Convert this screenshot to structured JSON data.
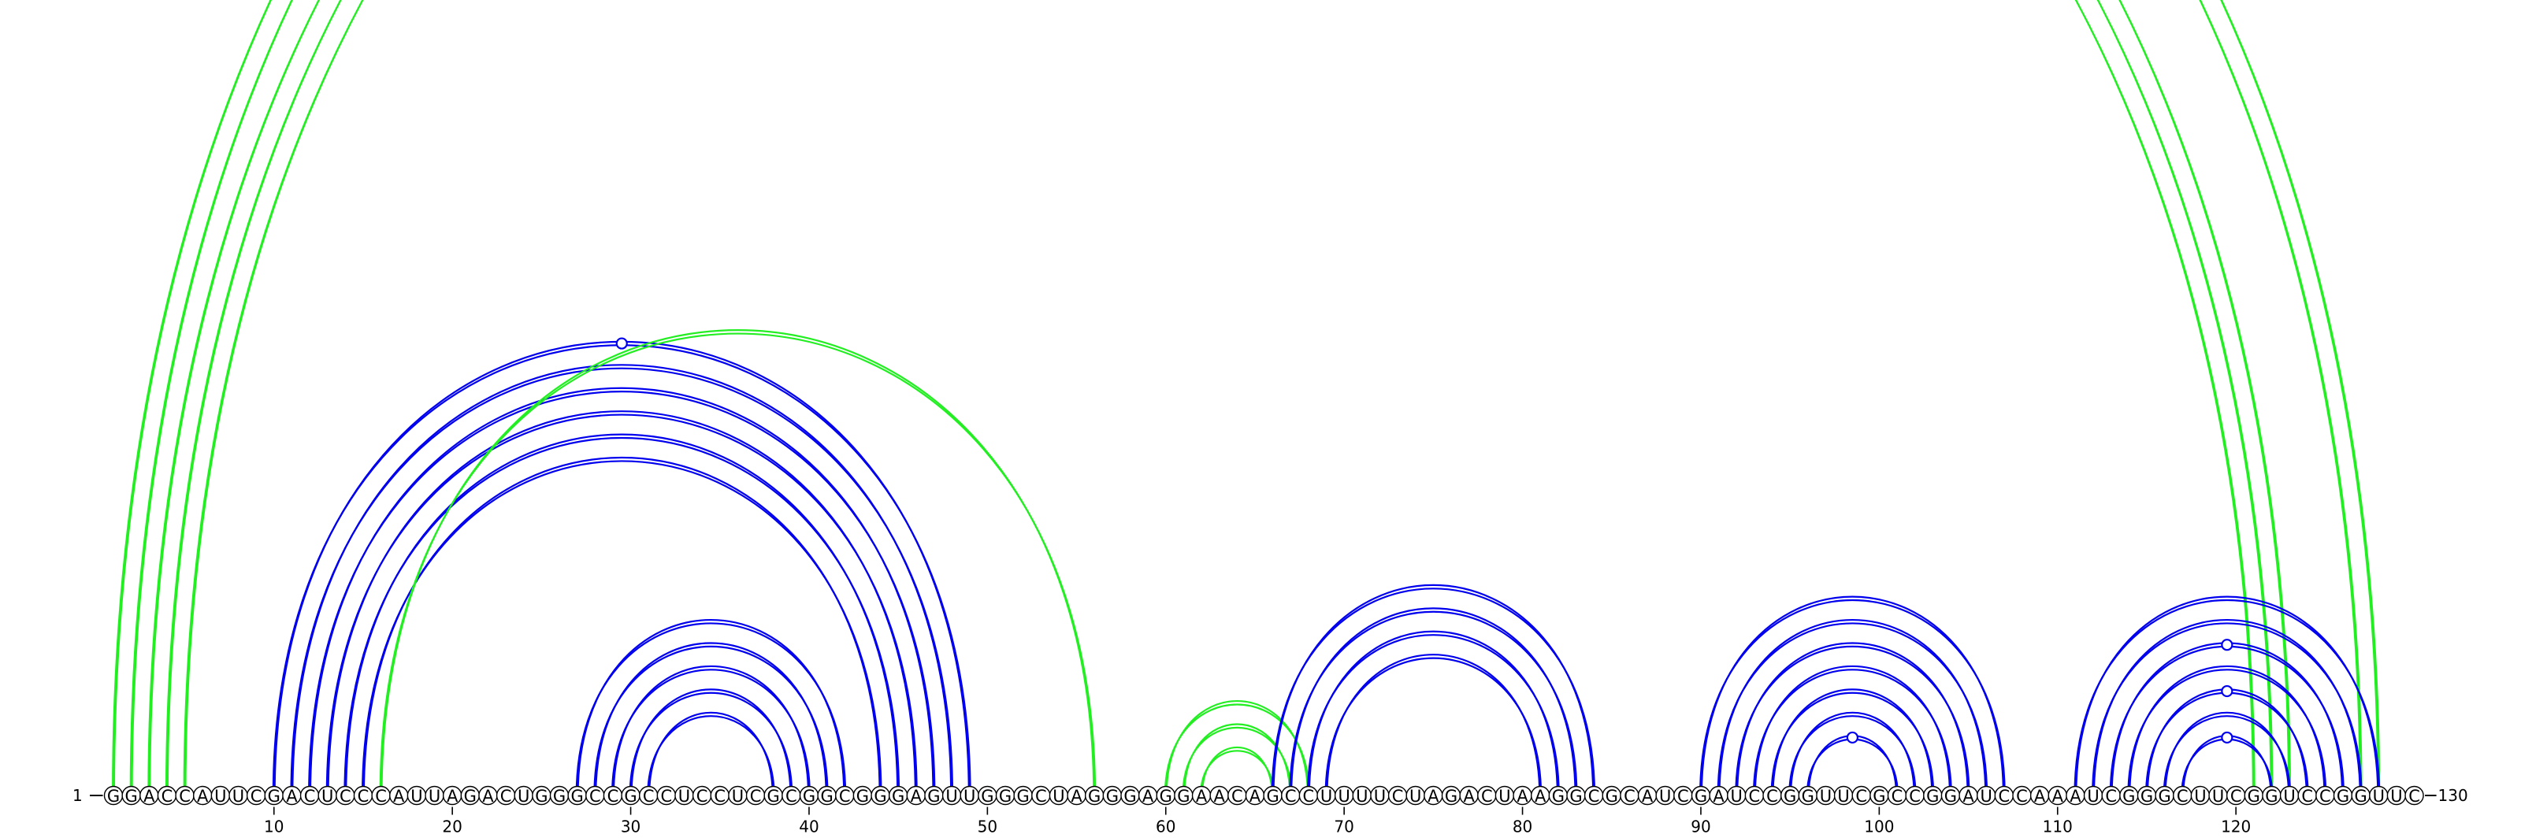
{
  "sequence": "GGACCAUUCGACUCCCAUUAGACUGGGCCGCCUCCUCGCGGCGGGAGUUGGGCUAGGGAGGAACAGCCUUUUCUAGACUAAGGCGCAUCGAUCCGGUUCGCCGGAUCCAAAUCGGGCUUCGGUCCGGUUC",
  "start_label": "1",
  "end_label": "130",
  "ticks": [
    10,
    20,
    30,
    40,
    50,
    60,
    70,
    80,
    90,
    100,
    110,
    120
  ],
  "colors": {
    "blue": "#0000ee",
    "green": "#22ee22"
  },
  "pairs": [
    {
      "i": 1,
      "j": 128,
      "color": "green"
    },
    {
      "i": 2,
      "j": 127,
      "color": "green"
    },
    {
      "i": 3,
      "j": 123,
      "color": "green"
    },
    {
      "i": 4,
      "j": 122,
      "color": "green"
    },
    {
      "i": 5,
      "j": 121,
      "color": "green"
    },
    {
      "i": 10,
      "j": 49,
      "color": "blue"
    },
    {
      "i": 11,
      "j": 48,
      "color": "blue"
    },
    {
      "i": 12,
      "j": 47,
      "color": "blue"
    },
    {
      "i": 13,
      "j": 46,
      "color": "blue"
    },
    {
      "i": 14,
      "j": 45,
      "color": "blue"
    },
    {
      "i": 15,
      "j": 44,
      "color": "blue"
    },
    {
      "i": 16,
      "j": 56,
      "color": "green"
    },
    {
      "i": 27,
      "j": 42,
      "color": "blue"
    },
    {
      "i": 28,
      "j": 41,
      "color": "blue"
    },
    {
      "i": 29,
      "j": 40,
      "color": "blue"
    },
    {
      "i": 30,
      "j": 39,
      "color": "blue"
    },
    {
      "i": 31,
      "j": 38,
      "color": "blue"
    },
    {
      "i": 60,
      "j": 68,
      "color": "green"
    },
    {
      "i": 61,
      "j": 67,
      "color": "green"
    },
    {
      "i": 62,
      "j": 66,
      "color": "green"
    },
    {
      "i": 66,
      "j": 84,
      "color": "blue"
    },
    {
      "i": 67,
      "j": 83,
      "color": "blue"
    },
    {
      "i": 68,
      "j": 82,
      "color": "blue"
    },
    {
      "i": 69,
      "j": 81,
      "color": "blue"
    },
    {
      "i": 90,
      "j": 107,
      "color": "blue"
    },
    {
      "i": 91,
      "j": 106,
      "color": "blue"
    },
    {
      "i": 92,
      "j": 105,
      "color": "blue"
    },
    {
      "i": 93,
      "j": 104,
      "color": "blue"
    },
    {
      "i": 94,
      "j": 103,
      "color": "blue"
    },
    {
      "i": 95,
      "j": 102,
      "color": "blue"
    },
    {
      "i": 96,
      "j": 101,
      "color": "blue"
    },
    {
      "i": 111,
      "j": 128,
      "color": "blue"
    },
    {
      "i": 112,
      "j": 127,
      "color": "blue"
    },
    {
      "i": 113,
      "j": 126,
      "color": "blue"
    },
    {
      "i": 114,
      "j": 125,
      "color": "blue"
    },
    {
      "i": 115,
      "j": 124,
      "color": "blue"
    },
    {
      "i": 116,
      "j": 123,
      "color": "blue"
    },
    {
      "i": 117,
      "j": 122,
      "color": "blue"
    }
  ],
  "markers": [
    {
      "i": 1,
      "j": 128,
      "color": "green"
    },
    {
      "i": 10,
      "j": 49,
      "color": "blue"
    },
    {
      "i": 96,
      "j": 101,
      "color": "blue"
    },
    {
      "i": 117,
      "j": 122,
      "color": "blue"
    },
    {
      "i": 115,
      "j": 124,
      "color": "blue"
    },
    {
      "i": 113,
      "j": 126,
      "color": "blue"
    }
  ]
}
